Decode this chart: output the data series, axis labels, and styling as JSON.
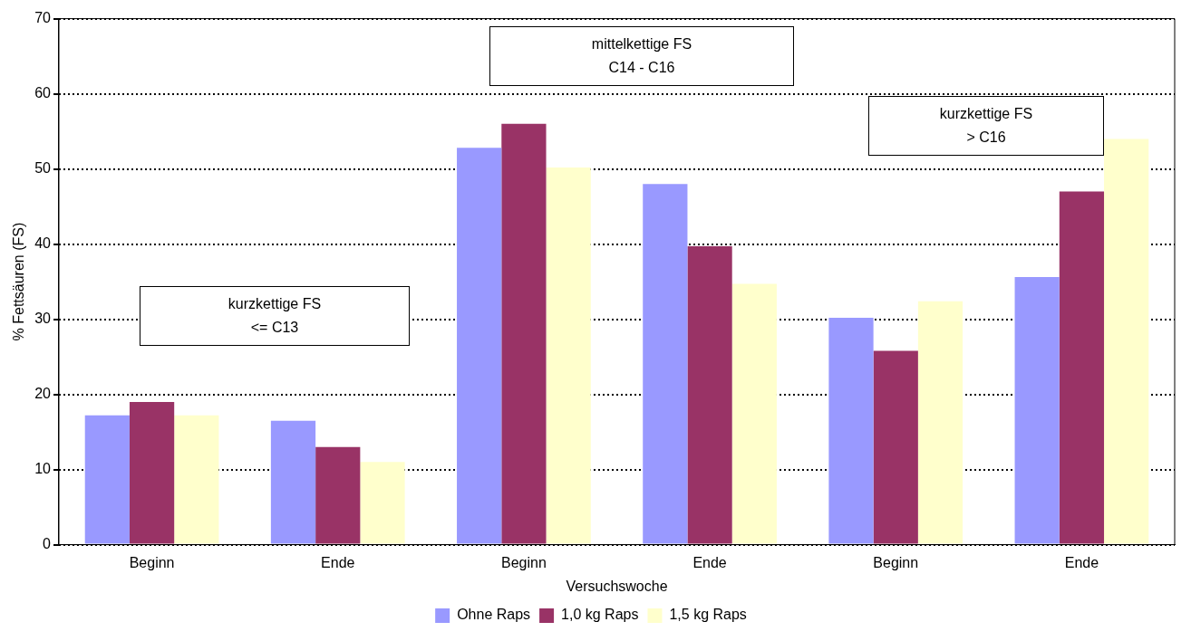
{
  "chart_data": {
    "type": "bar",
    "xlabel": "Versuchswoche",
    "ylabel": "% Fettsäuren (FS)",
    "categories": [
      "Beginn",
      "Ende",
      "Beginn",
      "Ende",
      "Beginn",
      "Ende"
    ],
    "series": [
      {
        "name": "Ohne Raps",
        "color": "#9999ff",
        "values": [
          17.2,
          16.5,
          52.8,
          48,
          30.2,
          35.6
        ]
      },
      {
        "name": "1,0 kg Raps",
        "color": "#993366",
        "values": [
          19,
          13,
          56,
          39.7,
          25.8,
          47
        ]
      },
      {
        "name": "1,5 kg Raps",
        "color": "#ffffcc",
        "values": [
          17.2,
          11,
          50.2,
          34.7,
          32.4,
          54
        ]
      }
    ],
    "ylim": [
      0,
      70
    ],
    "yticks": [
      0,
      10,
      20,
      30,
      40,
      50,
      60,
      70
    ],
    "grid": "y",
    "legend": "bottom",
    "annotations": [
      "kurzkettige FS\n<= C13",
      "mittelkettige FS\nC14  - C16",
      "kurzkettige FS\n> C16"
    ]
  }
}
